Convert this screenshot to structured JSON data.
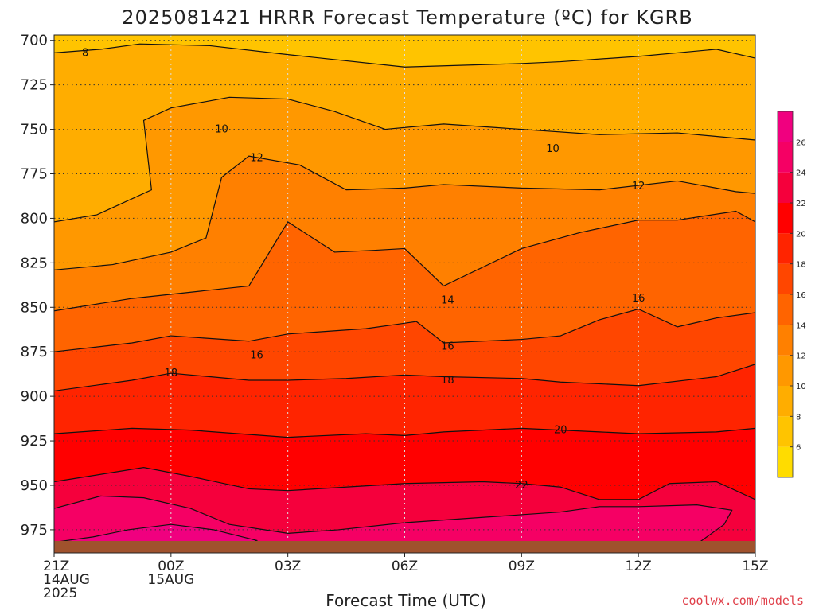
{
  "chart_data": {
    "type": "filled-contour",
    "title": "2025081421 HRRR Forecast Temperature (ºC) for KGRB",
    "xlabel": "Forecast Time (UTC)",
    "ylabel": "",
    "credit": "coolwx.com/models",
    "x_ticks": [
      {
        "hour": 0,
        "lines": [
          "21Z",
          "14AUG",
          "2025"
        ]
      },
      {
        "hour": 3,
        "lines": [
          "00Z",
          "15AUG"
        ]
      },
      {
        "hour": 6,
        "lines": [
          "03Z"
        ]
      },
      {
        "hour": 9,
        "lines": [
          "06Z"
        ]
      },
      {
        "hour": 12,
        "lines": [
          "09Z"
        ]
      },
      {
        "hour": 15,
        "lines": [
          "12Z"
        ]
      },
      {
        "hour": 18,
        "lines": [
          "15Z"
        ]
      }
    ],
    "xlim": [
      0,
      18
    ],
    "y_ticks": [
      700,
      725,
      750,
      775,
      800,
      825,
      850,
      875,
      900,
      925,
      950,
      975
    ],
    "ylim": [
      697,
      988
    ],
    "y_inverted": true,
    "grid": true,
    "colorbar": {
      "levels": [
        4,
        6,
        8,
        10,
        12,
        14,
        16,
        18,
        20,
        22,
        24,
        26,
        28
      ],
      "tick_labels": [
        "6",
        "8",
        "10",
        "12",
        "14",
        "16",
        "18",
        "20",
        "22",
        "24",
        "26"
      ],
      "colors": [
        "#ffdc00",
        "#ffc400",
        "#ffad00",
        "#ff9800",
        "#ff8000",
        "#ff6400",
        "#ff4600",
        "#ff2400",
        "#ff0000",
        "#f5003c",
        "#f50064",
        "#f0007f"
      ]
    },
    "contours": [
      {
        "level": 8,
        "label": "8",
        "label_at": [
          0.8,
          707
        ],
        "points": [
          [
            0,
            707
          ],
          [
            1.2,
            705
          ],
          [
            2.2,
            702
          ],
          [
            4,
            703
          ],
          [
            6,
            708
          ],
          [
            9,
            715
          ],
          [
            12,
            713
          ],
          [
            13,
            712
          ],
          [
            15,
            709
          ],
          [
            17,
            705
          ],
          [
            18,
            710
          ]
        ]
      },
      {
        "level": 10,
        "label": "10",
        "label_at": [
          4.3,
          750
        ],
        "label2": "10",
        "label2_at": [
          12.8,
          761
        ],
        "points": [
          [
            0,
            802
          ],
          [
            1.1,
            798
          ],
          [
            2.5,
            784
          ],
          [
            2.3,
            745
          ],
          [
            3,
            738
          ],
          [
            4.5,
            732
          ],
          [
            6,
            733
          ],
          [
            7.2,
            740
          ],
          [
            8.5,
            750
          ],
          [
            10,
            747
          ],
          [
            12,
            750
          ],
          [
            14,
            753
          ],
          [
            16,
            752
          ],
          [
            18,
            756
          ]
        ]
      },
      {
        "level": 12,
        "label": "12",
        "label_at": [
          5.2,
          766
        ],
        "label2": "12",
        "label2_at": [
          15,
          782
        ],
        "points": [
          [
            0,
            829
          ],
          [
            1.5,
            826
          ],
          [
            3,
            819
          ],
          [
            3.9,
            811
          ],
          [
            4.3,
            777
          ],
          [
            5,
            765
          ],
          [
            6.3,
            770
          ],
          [
            7.5,
            784
          ],
          [
            9,
            783
          ],
          [
            10,
            781
          ],
          [
            12,
            783
          ],
          [
            14,
            784
          ],
          [
            16,
            779
          ],
          [
            17.5,
            785
          ],
          [
            18,
            786
          ]
        ]
      },
      {
        "level": 14,
        "label": "14",
        "label_at": [
          10.1,
          846
        ],
        "points": [
          [
            0,
            852
          ],
          [
            2,
            845
          ],
          [
            5,
            838
          ],
          [
            6,
            802
          ],
          [
            7.2,
            819
          ],
          [
            8.2,
            818
          ],
          [
            9,
            817
          ],
          [
            10,
            838
          ],
          [
            12,
            817
          ],
          [
            13.5,
            808
          ],
          [
            15,
            801
          ],
          [
            16,
            801
          ],
          [
            17.5,
            796
          ],
          [
            18,
            802
          ]
        ]
      },
      {
        "level": 16,
        "label": "16",
        "label_at": [
          5.2,
          877
        ],
        "label2": "16",
        "label2_at": [
          10.1,
          872
        ],
        "label3": "16",
        "label3_at": [
          15,
          845
        ],
        "points": [
          [
            0,
            875
          ],
          [
            2,
            870
          ],
          [
            3,
            866
          ],
          [
            5,
            869
          ],
          [
            6,
            865
          ],
          [
            8,
            862
          ],
          [
            9.3,
            858
          ],
          [
            10,
            870
          ],
          [
            12,
            868
          ],
          [
            13,
            866
          ],
          [
            14,
            857
          ],
          [
            15,
            851
          ],
          [
            16,
            861
          ],
          [
            17,
            856
          ],
          [
            18,
            853
          ]
        ]
      },
      {
        "level": 18,
        "label": "18",
        "label_at": [
          3,
          887
        ],
        "label2": "18",
        "label2_at": [
          10.1,
          891
        ],
        "points": [
          [
            0,
            897
          ],
          [
            2,
            891
          ],
          [
            3,
            887
          ],
          [
            5,
            891
          ],
          [
            6,
            891
          ],
          [
            7.5,
            890
          ],
          [
            9,
            888
          ],
          [
            10,
            889
          ],
          [
            12,
            890
          ],
          [
            13,
            892
          ],
          [
            15,
            894
          ],
          [
            17,
            889
          ],
          [
            18,
            882
          ]
        ]
      },
      {
        "level": 20,
        "label": "20",
        "label_at": [
          13,
          919
        ],
        "points": [
          [
            0,
            921
          ],
          [
            2,
            918
          ],
          [
            3.5,
            919
          ],
          [
            6,
            923
          ],
          [
            8,
            921
          ],
          [
            9,
            922
          ],
          [
            10,
            920
          ],
          [
            12,
            918
          ],
          [
            14,
            920
          ],
          [
            15,
            921
          ],
          [
            17,
            920
          ],
          [
            18,
            918
          ]
        ]
      },
      {
        "level": 22,
        "label": "22",
        "label_at": [
          12,
          950
        ],
        "points": [
          [
            0,
            948
          ],
          [
            2.3,
            940
          ],
          [
            3.5,
            945
          ],
          [
            5,
            952
          ],
          [
            6,
            953
          ],
          [
            9,
            949
          ],
          [
            11,
            948
          ],
          [
            12,
            949
          ],
          [
            13,
            951
          ],
          [
            14,
            958
          ],
          [
            15,
            958
          ],
          [
            15.8,
            949
          ],
          [
            17,
            948
          ],
          [
            18,
            958
          ]
        ]
      },
      {
        "level": 24,
        "label": "",
        "points": [
          [
            0,
            963
          ],
          [
            1.2,
            956
          ],
          [
            2.3,
            957
          ],
          [
            3.5,
            963
          ],
          [
            4.5,
            972
          ],
          [
            6,
            977
          ],
          [
            7.3,
            975
          ],
          [
            9,
            971
          ],
          [
            11,
            968
          ],
          [
            13,
            965
          ],
          [
            14,
            962
          ],
          [
            15,
            962
          ],
          [
            16.5,
            961
          ],
          [
            17.4,
            964
          ],
          [
            17.2,
            972
          ],
          [
            16.5,
            983
          ],
          [
            15.3,
            986
          ]
        ]
      },
      {
        "level": 26,
        "label": "",
        "points": [
          [
            0,
            982
          ],
          [
            1,
            979
          ],
          [
            1.9,
            975
          ],
          [
            3,
            972
          ],
          [
            4.1,
            975
          ],
          [
            5.2,
            981
          ],
          [
            4.7,
            987
          ]
        ]
      }
    ]
  }
}
